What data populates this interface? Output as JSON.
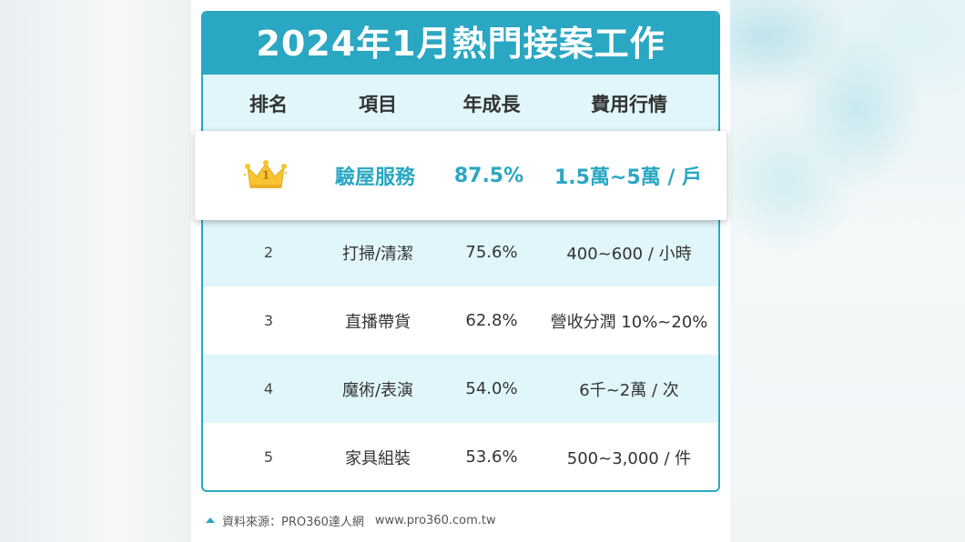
{
  "title": "2024年1月熱門接案工作",
  "headers": {
    "rank": "排名",
    "item": "項目",
    "growth": "年成長",
    "fee": "費用行情"
  },
  "top": {
    "rank": "1",
    "item": "驗屋服務",
    "growth": "87.5%",
    "fee": "1.5萬~5萬 / 戶",
    "icon": "crown-icon"
  },
  "rows": [
    {
      "rank": "2",
      "item": "打掃/清潔",
      "growth": "75.6%",
      "fee": "400~600 / 小時"
    },
    {
      "rank": "3",
      "item": "直播帶貨",
      "growth": "62.8%",
      "fee": "營收分潤 10%~20%"
    },
    {
      "rank": "4",
      "item": "魔術/表演",
      "growth": "54.0%",
      "fee": "6千~2萬 / 次"
    },
    {
      "rank": "5",
      "item": "家具組裝",
      "growth": "53.6%",
      "fee": "500~3,000 / 件"
    }
  ],
  "source": {
    "label": "資料來源：PRO360達人網",
    "url": "www.pro360.com.tw",
    "icon": "triangle-up-icon"
  },
  "colors": {
    "accent": "#2aa7c3",
    "row_alt": "#e0f6fb",
    "text": "#333333",
    "crown": "#f7c531"
  }
}
